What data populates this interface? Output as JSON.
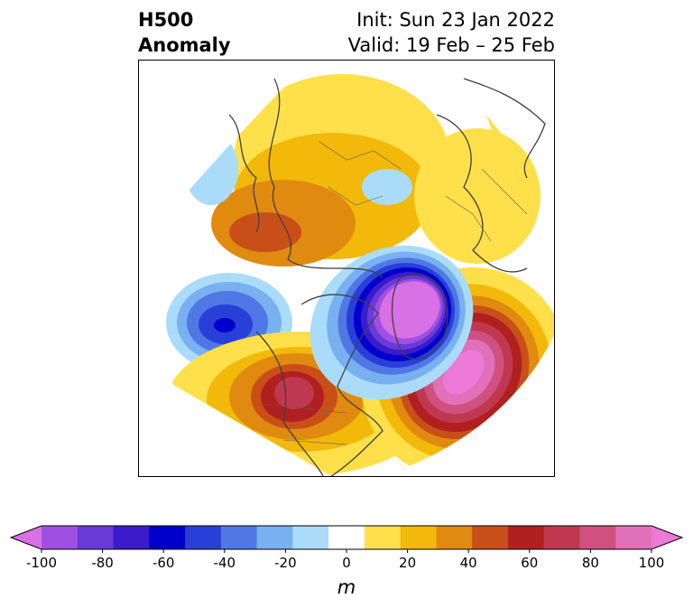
{
  "title": {
    "left_line1": "H500",
    "left_line2": "Anomaly",
    "right_line1": "Init: Sun 23 Jan 2022",
    "right_line2": "Valid: 19 Feb – 25 Feb"
  },
  "colorbar": {
    "units": "m",
    "ticks": [
      -100,
      -80,
      -60,
      -40,
      -20,
      0,
      20,
      40,
      60,
      80,
      100
    ],
    "tick_labels": [
      "-100",
      "-80",
      "-60",
      "-40",
      "-20",
      "0",
      "20",
      "40",
      "60",
      "80",
      "100"
    ],
    "levels": [
      -100,
      -90,
      -80,
      -70,
      -60,
      -50,
      -40,
      -30,
      -20,
      -10,
      10,
      20,
      30,
      40,
      50,
      60,
      70,
      80,
      90,
      100
    ],
    "colors": [
      "#d870e6",
      "#a050e0",
      "#6a3ad8",
      "#3a1ccc",
      "#0000cc",
      "#2840d8",
      "#5078e4",
      "#78b0f0",
      "#aadcfa",
      "#ffffff",
      "#ffe04a",
      "#f2b80a",
      "#e08a10",
      "#c85018",
      "#b02020",
      "#c03850",
      "#d05080",
      "#e070b8",
      "#ec7ad8"
    ],
    "extend": "both"
  },
  "map": {
    "projection": "north polar stereographic",
    "anomaly_centers": [
      {
        "region": "eastern North Pacific",
        "sign": "negative",
        "peak_m": -70
      },
      {
        "region": "Greenland / Labrador Sea",
        "sign": "negative",
        "peak_m": -100
      },
      {
        "region": "western United States",
        "sign": "positive",
        "peak_m": 70
      },
      {
        "region": "central North Atlantic",
        "sign": "positive",
        "peak_m": 90
      },
      {
        "region": "Siberia",
        "sign": "positive",
        "peak_m": 40
      },
      {
        "region": "Scandinavia / northern Europe",
        "sign": "positive",
        "peak_m": 20
      },
      {
        "region": "Arctic north of Scandinavia",
        "sign": "negative",
        "peak_m": -15
      },
      {
        "region": "Bering Sea",
        "sign": "negative",
        "peak_m": -15
      }
    ]
  }
}
